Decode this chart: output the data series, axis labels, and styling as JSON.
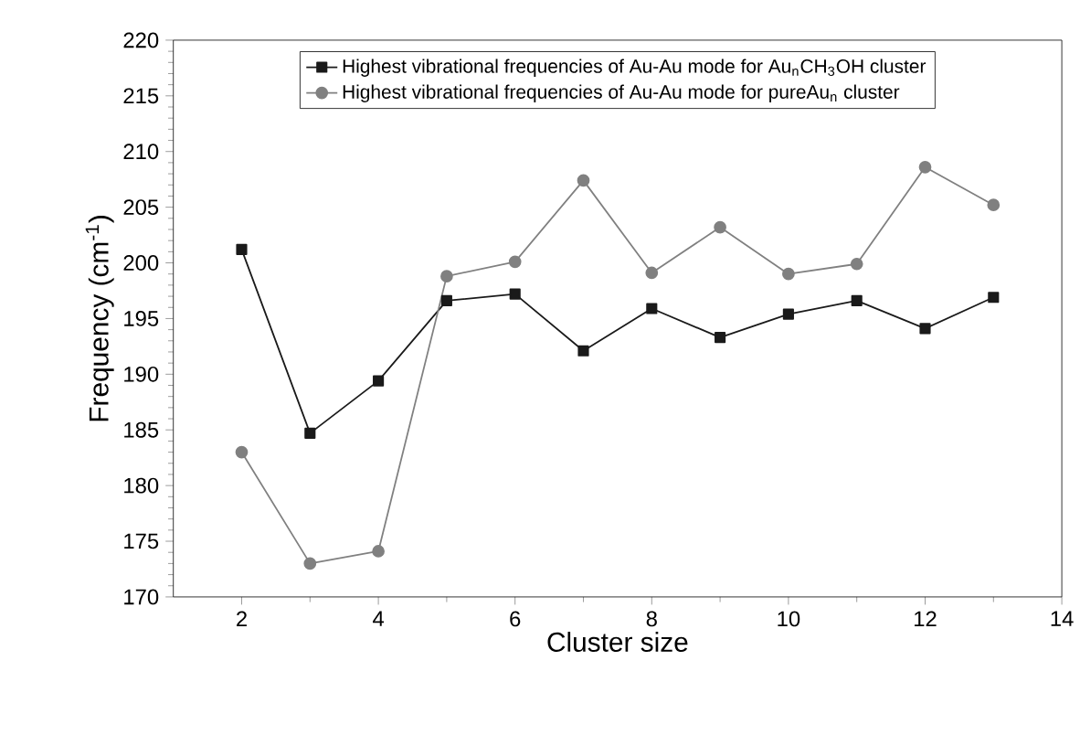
{
  "chart_data": {
    "type": "line",
    "xlabel": "Cluster size",
    "ylabel": "Frequency (cm$^{-1}$)",
    "xlim": [
      1,
      14
    ],
    "xticks": [
      2,
      4,
      6,
      8,
      10,
      12,
      14
    ],
    "ylim": [
      170,
      220
    ],
    "yticks": [
      170,
      175,
      180,
      185,
      190,
      195,
      200,
      205,
      210,
      215,
      220
    ],
    "x": [
      2,
      3,
      4,
      5,
      6,
      7,
      8,
      9,
      10,
      11,
      12,
      13
    ],
    "legend": "top",
    "grid": false,
    "line_style": "solid",
    "series": [
      {
        "name": "Highest vibrational frequencies of Au-Au mode for Au$_{n}$CH$_{3}$OH cluster",
        "color": "#1a1a1a",
        "marker": "square",
        "values": [
          201.2,
          184.7,
          189.4,
          196.6,
          197.2,
          192.1,
          195.9,
          193.3,
          195.4,
          196.6,
          194.1,
          196.9
        ]
      },
      {
        "name": "Highest vibrational frequencies of Au-Au mode for pureAu$_{n}$ cluster",
        "color": "#808080",
        "marker": "circle",
        "values": [
          183,
          173,
          174.1,
          198.8,
          200.1,
          207.4,
          199.1,
          203.2,
          199.0,
          199.9,
          208.6,
          205.2
        ]
      }
    ]
  }
}
